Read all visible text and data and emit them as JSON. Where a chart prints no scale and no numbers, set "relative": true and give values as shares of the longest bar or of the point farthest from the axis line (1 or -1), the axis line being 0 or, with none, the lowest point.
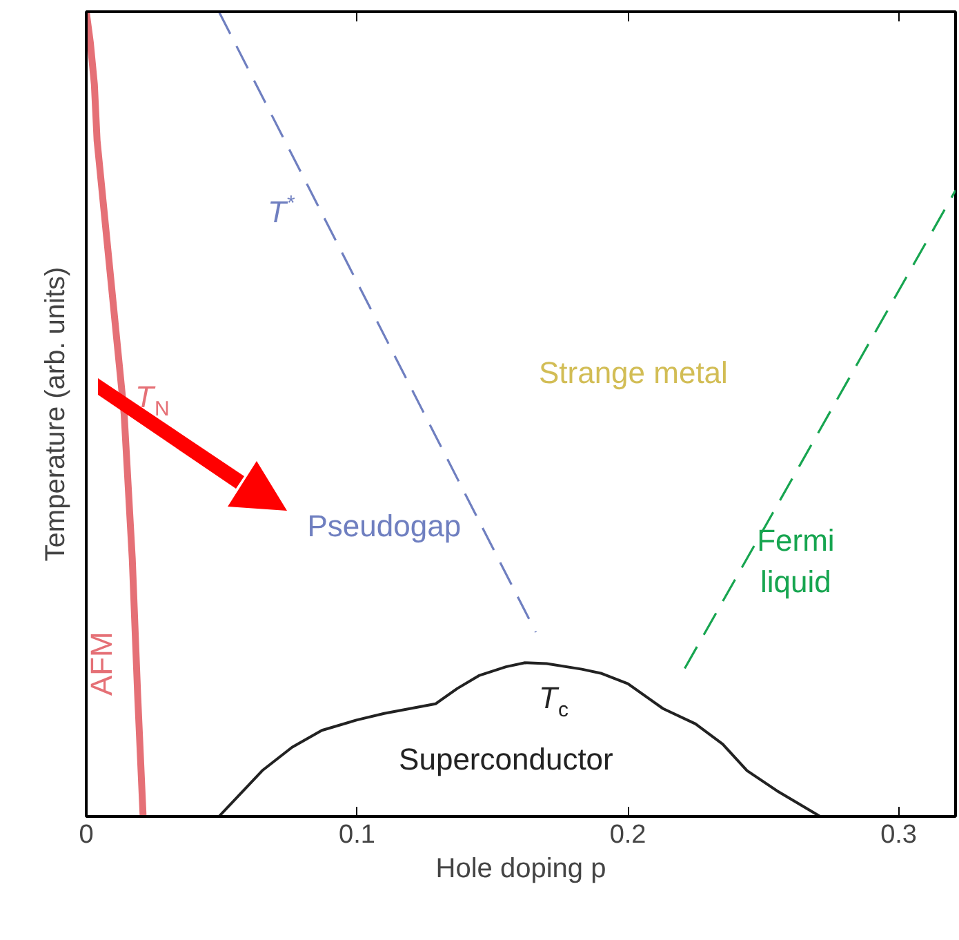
{
  "chart_data": {
    "type": "line",
    "relative": true,
    "xlabel": "Hole doping p",
    "ylabel": "Temperature (arb. units)",
    "xlim": [
      0,
      0.321
    ],
    "xticks": [
      0,
      0.1,
      0.2,
      0.3
    ],
    "grid": false,
    "series": [
      {
        "name": "T$_{N}$",
        "color": "#e57076",
        "line_style": "solid",
        "x": [
          0,
          0.0015,
          0.003,
          0.004,
          0.009,
          0.014,
          0.017,
          0.019,
          0.021
        ],
        "values": [
          1.0,
          0.962,
          0.91,
          0.84,
          0.67,
          0.5,
          0.32,
          0.15,
          0
        ]
      },
      {
        "name": "T$^{*}$",
        "color": "#6f7fc0",
        "line_style": "dashed",
        "x": [
          0.049,
          0.166
        ],
        "values": [
          1.0,
          0.229
        ]
      },
      {
        "color": "#17a550",
        "line_style": "dashed",
        "x": [
          0.221,
          0.321
        ],
        "values": [
          0.184,
          0.778
        ]
      },
      {
        "name": "T$_{c}$",
        "color": "#222222",
        "line_style": "solid",
        "x": [
          0.049,
          0.065,
          0.076,
          0.087,
          0.1,
          0.11,
          0.129,
          0.137,
          0.145,
          0.155,
          0.162,
          0.17,
          0.183,
          0.19,
          0.2,
          0.213,
          0.225,
          0.235,
          0.244,
          0.255,
          0.262,
          0.271
        ],
        "values": [
          0,
          0.057,
          0.086,
          0.107,
          0.12,
          0.128,
          0.14,
          0.159,
          0.175,
          0.186,
          0.191,
          0.19,
          0.183,
          0.178,
          0.165,
          0.134,
          0.115,
          0.09,
          0.057,
          0.032,
          0.018,
          0
        ]
      }
    ],
    "annotations": [
      "AFM",
      "Pseudogap",
      "Strange metal",
      "Fermi\nliquid",
      "Superconductor"
    ]
  }
}
